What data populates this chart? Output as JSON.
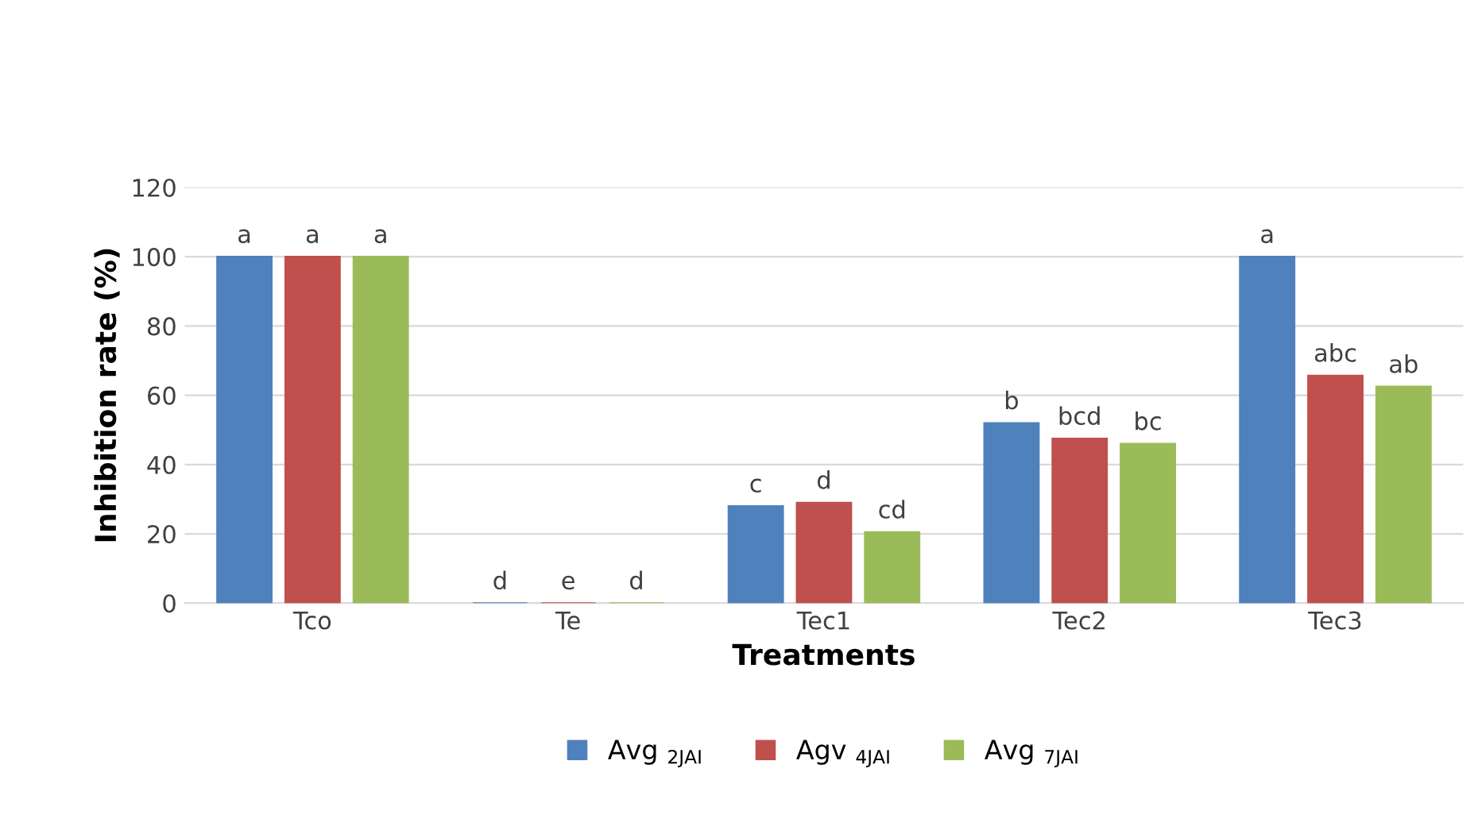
{
  "chart_data": {
    "type": "bar",
    "xlabel": "Treatments",
    "ylabel": "Inhibition rate (%)",
    "categories": [
      "Tco",
      "Te",
      "Tec1",
      "Tec2",
      "Tec3"
    ],
    "series": [
      {
        "name": "Avg $_{2JAI}$",
        "color": "#4f81bd",
        "values": [
          100,
          0,
          28,
          52,
          100
        ],
        "value_labels": [
          "a",
          "d",
          "c",
          "b",
          "a"
        ]
      },
      {
        "name": "Agv $_{4JAI}$",
        "color": "#c0504d",
        "values": [
          100,
          0,
          29,
          47.5,
          65.7
        ],
        "value_labels": [
          "a",
          "e",
          "d",
          "bcd",
          "abc"
        ]
      },
      {
        "name": "Avg $_{7JAI}$",
        "color": "#9bbb59",
        "values": [
          100,
          0,
          20.5,
          46,
          62.5
        ],
        "value_labels": [
          "a",
          "d",
          "cd",
          "bc",
          "ab"
        ]
      }
    ],
    "ylim": [
      0,
      120
    ],
    "yticks": [
      0,
      20,
      40,
      60,
      80,
      100,
      120
    ],
    "grid": "y",
    "legend": "bottom"
  }
}
